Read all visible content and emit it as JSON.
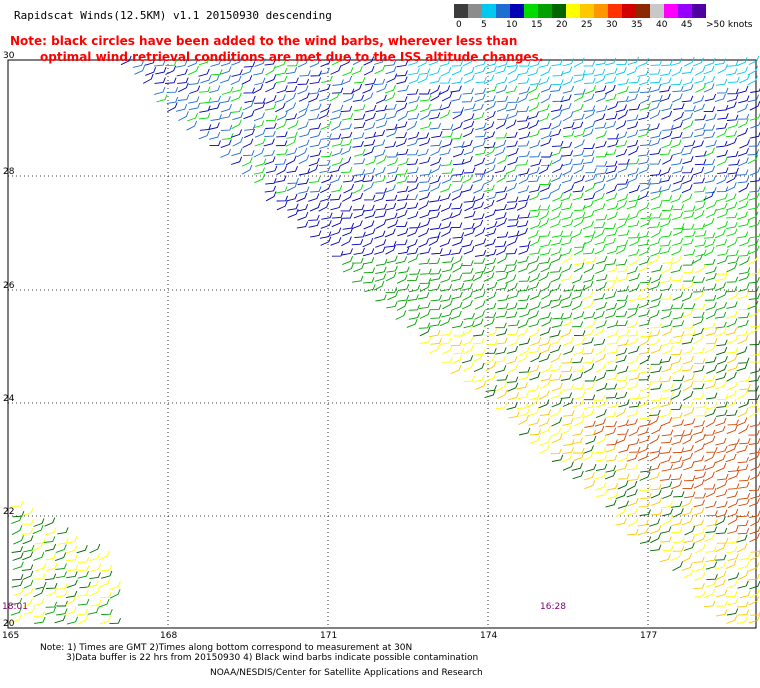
{
  "title": "Rapidscat Winds(12.5KM) v1.1 20150930 descending",
  "note": {
    "line1": "Note: black circles have been added to the wind barbs, wherever less than",
    "line2": "optimal wind retrieval conditions are met due to the ISS altitude changes."
  },
  "legend": {
    "colors": [
      "#3c3c3c",
      "#8c8c8c",
      "#00c8f0",
      "#1e6ed2",
      "#0000b4",
      "#00dc00",
      "#00a000",
      "#006400",
      "#ffff00",
      "#ffc800",
      "#ff9600",
      "#ff3200",
      "#d20000",
      "#8c2800",
      "#c8c8c8",
      "#ff00ff",
      "#9600ff",
      "#5000a0"
    ],
    "ticks": [
      "0",
      "5",
      "10",
      "15",
      "20",
      "25",
      "30",
      "35",
      "40",
      "45",
      ">50 knots"
    ]
  },
  "map": {
    "lat_labels": [
      "30",
      "28",
      "26",
      "24",
      "22",
      "20"
    ],
    "lon_labels": [
      "165",
      "168",
      "171",
      "174",
      "177"
    ],
    "time_labels": [
      "18:01",
      "16:28"
    ]
  },
  "footer": {
    "line1": "Note: 1) Times are GMT 2)Times along bottom correspond to measurement at 30N",
    "line2": "3)Data buffer is 22 hrs from 20150930 4) Black wind barbs indicate possible contamination",
    "credit": "NOAA/NESDIS/Center for Satellite Applications and Research"
  }
}
